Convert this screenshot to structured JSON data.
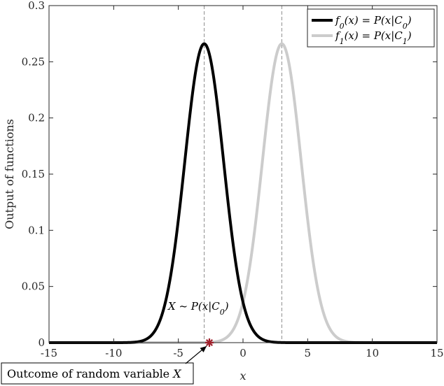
{
  "chart_data": {
    "type": "line",
    "xlabel": "x",
    "ylabel": "Output of functions",
    "xlim": [
      -15,
      15
    ],
    "ylim": [
      0,
      0.3
    ],
    "xticks": [
      -15,
      -10,
      -5,
      0,
      5,
      10,
      15
    ],
    "xtick_labels": [
      "-15",
      "-10",
      "-5",
      "0",
      "5",
      "10",
      "15"
    ],
    "yticks": [
      0,
      0.05,
      0.1,
      0.15,
      0.2,
      0.25,
      0.3
    ],
    "ytick_labels": [
      "0",
      "0.05",
      "0.1",
      "0.15",
      "0.2",
      "0.25",
      "0.3"
    ],
    "grid": false,
    "legend_position": "top-right",
    "series": [
      {
        "name": "f0(x) = P(x|C0)",
        "legend_html": "f<tspan baseline-shift='sub' font-size='11'>0</tspan>(x) = P(x|C<tspan baseline-shift='sub' font-size='11'>0</tspan>)",
        "color": "#000000",
        "curve": "gaussian",
        "mean": -3,
        "sigma": 1.5,
        "peak": 0.266
      },
      {
        "name": "f1(x) = P(x|C1)",
        "legend_html": "f<tspan baseline-shift='sub' font-size='11'>1</tspan>(x) = P(x|C<tspan baseline-shift='sub' font-size='11'>1</tspan>)",
        "color": "#cccccc",
        "curve": "gaussian",
        "mean": 3,
        "sigma": 1.5,
        "peak": 0.266
      }
    ],
    "vlines": [
      -3,
      3
    ],
    "marker": {
      "x": -2.6,
      "y": 0,
      "symbol": "*",
      "color": "#a0202c"
    },
    "annotations": {
      "distribution_label": "X ~ P(x|C0)",
      "outcome_label": "Outcome of random variable X"
    }
  }
}
